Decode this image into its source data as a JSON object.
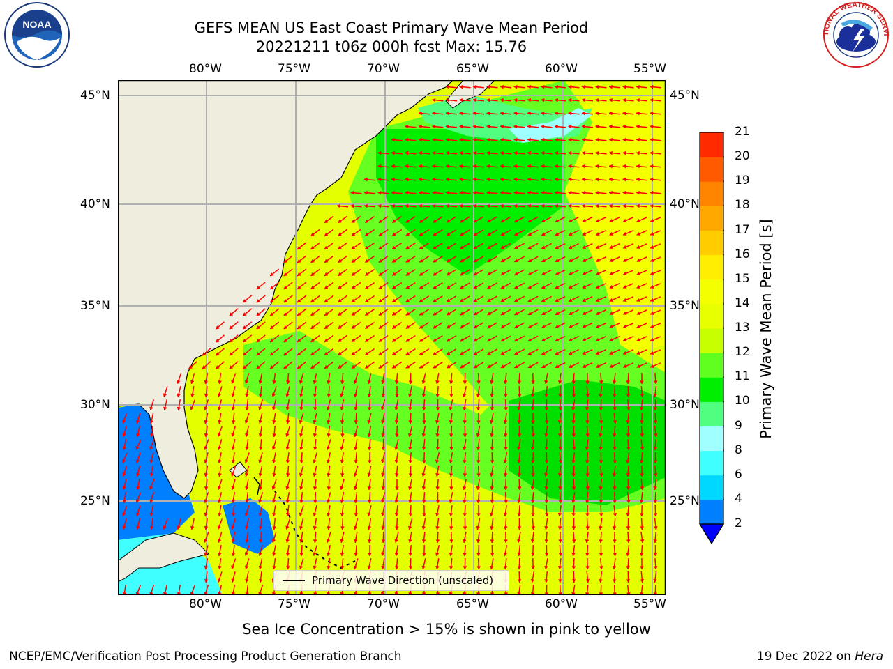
{
  "header": {
    "title_line1": "GEFS MEAN US East Coast Primary Wave Mean Period",
    "title_line2": "20221211 t06z 000h fcst   Max: 15.76"
  },
  "logos": {
    "left": {
      "name": "noaa-logo-icon",
      "text": "NOAA"
    },
    "right": {
      "name": "national-weather-service-logo-icon",
      "text": "NATIONAL WEATHER SERVICE"
    }
  },
  "map": {
    "lon_labels": [
      "80°W",
      "75°W",
      "70°W",
      "65°W",
      "60°W",
      "55°W"
    ],
    "lat_labels": [
      "45°N",
      "40°N",
      "35°N",
      "30°N",
      "25°N"
    ],
    "legend_label": "Primary Wave Direction (unscaled)",
    "colors": {
      "land": "#efedde",
      "ocean_low": "#0080ff",
      "ocean_mid": "#00ff00",
      "ocean_high": "#eeff00",
      "arrows": "#ff0000"
    }
  },
  "colorbar": {
    "title": "Primary Wave Mean Period [s]",
    "ticks": [
      "2",
      "4",
      "6",
      "8",
      "9",
      "10",
      "11",
      "12",
      "13",
      "14",
      "15",
      "16",
      "17",
      "18",
      "19",
      "20",
      "21"
    ],
    "colors": [
      "#0080ff",
      "#00d8ff",
      "#40ffff",
      "#a0ffff",
      "#50ff80",
      "#00ee00",
      "#60ff20",
      "#c8ff00",
      "#e8ff00",
      "#f4ff00",
      "#ffee00",
      "#ffcc00",
      "#ffa800",
      "#ff8400",
      "#ff5a00",
      "#ff2a00"
    ],
    "extend_color": "#0000ff"
  },
  "footer": {
    "note": "Sea Ice Concentration > 15% is shown in pink to yellow",
    "left": "NCEP/EMC/Verification Post Processing Product Generation Branch",
    "right_prefix": "19 Dec 2022 on ",
    "right_machine": "Hera"
  }
}
